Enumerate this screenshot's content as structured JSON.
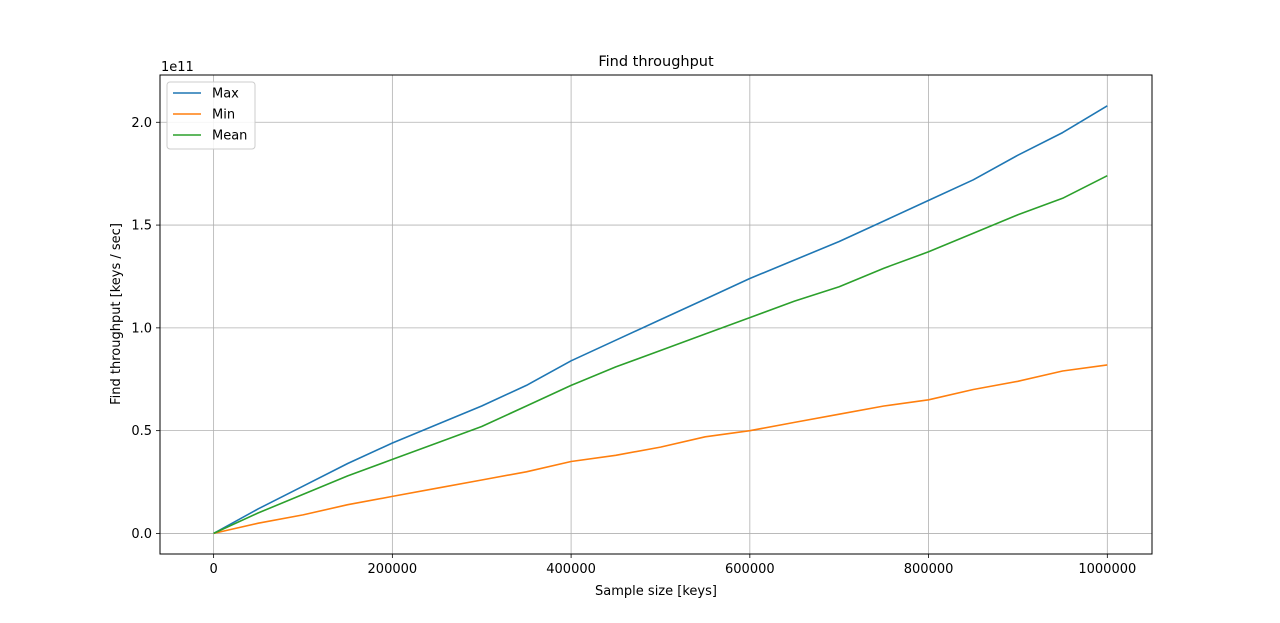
{
  "chart_data": {
    "type": "line",
    "title": "Find throughput",
    "xlabel": "Sample size [keys]",
    "ylabel": "Find throughput [keys / sec]",
    "y_offset_label": "1e11",
    "xlim": [
      -60000,
      1050000
    ],
    "ylim": [
      -0.1,
      2.23
    ],
    "x_ticks": [
      0,
      200000,
      400000,
      600000,
      800000,
      1000000
    ],
    "x_tick_labels": [
      "0",
      "200000",
      "400000",
      "600000",
      "800000",
      "1000000"
    ],
    "y_ticks": [
      0.0,
      0.5,
      1.0,
      1.5,
      2.0
    ],
    "y_tick_labels": [
      "0.0",
      "0.5",
      "1.0",
      "1.5",
      "2.0"
    ],
    "grid": true,
    "legend_position": "top-left",
    "x": [
      0,
      50000,
      100000,
      150000,
      200000,
      250000,
      300000,
      350000,
      400000,
      450000,
      500000,
      550000,
      600000,
      650000,
      700000,
      750000,
      800000,
      850000,
      900000,
      950000,
      1000000
    ],
    "series": [
      {
        "name": "Max",
        "color": "#1f77b4",
        "values": [
          0.0,
          0.12,
          0.23,
          0.34,
          0.44,
          0.53,
          0.62,
          0.72,
          0.84,
          0.94,
          1.04,
          1.14,
          1.24,
          1.33,
          1.42,
          1.52,
          1.62,
          1.72,
          1.84,
          1.95,
          2.08
        ]
      },
      {
        "name": "Min",
        "color": "#ff7f0e",
        "values": [
          0.0,
          0.05,
          0.09,
          0.14,
          0.18,
          0.22,
          0.26,
          0.3,
          0.35,
          0.38,
          0.42,
          0.47,
          0.5,
          0.54,
          0.58,
          0.62,
          0.65,
          0.7,
          0.74,
          0.79,
          0.82
        ]
      },
      {
        "name": "Mean",
        "color": "#2ca02c",
        "values": [
          0.0,
          0.1,
          0.19,
          0.28,
          0.36,
          0.44,
          0.52,
          0.62,
          0.72,
          0.81,
          0.89,
          0.97,
          1.05,
          1.13,
          1.2,
          1.29,
          1.37,
          1.46,
          1.55,
          1.63,
          1.74
        ]
      }
    ]
  }
}
